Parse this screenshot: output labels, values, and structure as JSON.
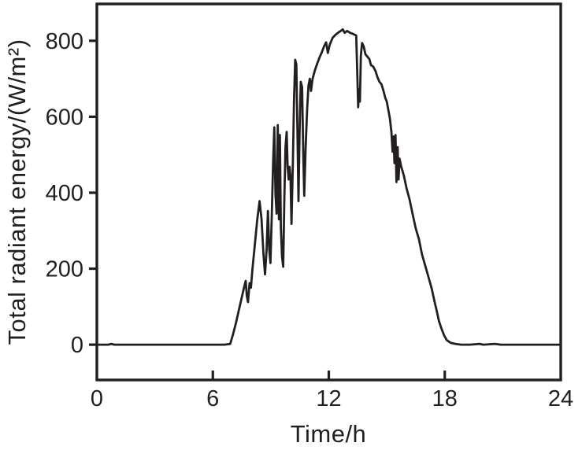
{
  "figure": {
    "background": "#ffffff",
    "axis_color": "#231f20",
    "text_color": "#231f20"
  },
  "chart_data": {
    "type": "line",
    "title": "",
    "xlabel": "Time/h",
    "ylabel": "Total radiant energy/(W/m²)",
    "xlim": [
      0,
      24
    ],
    "ylim": [
      -93,
      897
    ],
    "x_ticks": [
      0,
      6,
      12,
      18,
      24
    ],
    "y_ticks": [
      0,
      200,
      400,
      600,
      800
    ],
    "grid": false,
    "legend": "none",
    "series": [
      {
        "name": "total-radiant-energy",
        "color": "#231f20",
        "points": [
          [
            0,
            0
          ],
          [
            0.6,
            0
          ],
          [
            0.75,
            2
          ],
          [
            0.9,
            0
          ],
          [
            2,
            0
          ],
          [
            3.5,
            0
          ],
          [
            5,
            0
          ],
          [
            6,
            0
          ],
          [
            6.6,
            0
          ],
          [
            6.9,
            2
          ],
          [
            7.05,
            28
          ],
          [
            7.2,
            58
          ],
          [
            7.35,
            92
          ],
          [
            7.5,
            125
          ],
          [
            7.62,
            152
          ],
          [
            7.7,
            168
          ],
          [
            7.76,
            128
          ],
          [
            7.82,
            112
          ],
          [
            7.9,
            162
          ],
          [
            7.97,
            150
          ],
          [
            8.05,
            200
          ],
          [
            8.18,
            268
          ],
          [
            8.3,
            330
          ],
          [
            8.42,
            378
          ],
          [
            8.52,
            330
          ],
          [
            8.62,
            240
          ],
          [
            8.7,
            185
          ],
          [
            8.78,
            250
          ],
          [
            8.85,
            352
          ],
          [
            8.92,
            248
          ],
          [
            8.98,
            215
          ],
          [
            9.05,
            340
          ],
          [
            9.12,
            480
          ],
          [
            9.18,
            572
          ],
          [
            9.24,
            395
          ],
          [
            9.3,
            345
          ],
          [
            9.36,
            578
          ],
          [
            9.42,
            330
          ],
          [
            9.47,
            552
          ],
          [
            9.52,
            310
          ],
          [
            9.58,
            232
          ],
          [
            9.64,
            205
          ],
          [
            9.7,
            390
          ],
          [
            9.76,
            520
          ],
          [
            9.82,
            560
          ],
          [
            9.87,
            470
          ],
          [
            9.92,
            435
          ],
          [
            9.97,
            468
          ],
          [
            10.02,
            440
          ],
          [
            10.07,
            318
          ],
          [
            10.14,
            480
          ],
          [
            10.2,
            640
          ],
          [
            10.26,
            750
          ],
          [
            10.32,
            738
          ],
          [
            10.38,
            560
          ],
          [
            10.43,
            378
          ],
          [
            10.49,
            560
          ],
          [
            10.55,
            692
          ],
          [
            10.62,
            678
          ],
          [
            10.68,
            500
          ],
          [
            10.73,
            392
          ],
          [
            10.8,
            520
          ],
          [
            10.88,
            620
          ],
          [
            10.95,
            682
          ],
          [
            11.02,
            700
          ],
          [
            11.08,
            668
          ],
          [
            11.16,
            700
          ],
          [
            11.28,
            722
          ],
          [
            11.4,
            740
          ],
          [
            11.52,
            756
          ],
          [
            11.64,
            770
          ],
          [
            11.76,
            786
          ],
          [
            11.86,
            796
          ],
          [
            11.95,
            768
          ],
          [
            12.05,
            790
          ],
          [
            12.2,
            808
          ],
          [
            12.35,
            816
          ],
          [
            12.5,
            822
          ],
          [
            12.62,
            826
          ],
          [
            12.72,
            830
          ],
          [
            12.82,
            821
          ],
          [
            12.95,
            826
          ],
          [
            13.1,
            821
          ],
          [
            13.25,
            818
          ],
          [
            13.42,
            814
          ],
          [
            13.47,
            720
          ],
          [
            13.52,
            625
          ],
          [
            13.57,
            672
          ],
          [
            13.61,
            640
          ],
          [
            13.66,
            760
          ],
          [
            13.72,
            794
          ],
          [
            13.8,
            786
          ],
          [
            13.9,
            764
          ],
          [
            14.0,
            758
          ],
          [
            14.1,
            752
          ],
          [
            14.18,
            736
          ],
          [
            14.3,
            732
          ],
          [
            14.42,
            720
          ],
          [
            14.52,
            704
          ],
          [
            14.62,
            692
          ],
          [
            14.72,
            686
          ],
          [
            14.82,
            670
          ],
          [
            14.92,
            650
          ],
          [
            15.0,
            640
          ],
          [
            15.08,
            618
          ],
          [
            15.16,
            595
          ],
          [
            15.24,
            560
          ],
          [
            15.3,
            508
          ],
          [
            15.35,
            548
          ],
          [
            15.4,
            478
          ],
          [
            15.45,
            552
          ],
          [
            15.5,
            428
          ],
          [
            15.56,
            520
          ],
          [
            15.61,
            435
          ],
          [
            15.66,
            490
          ],
          [
            15.74,
            470
          ],
          [
            15.88,
            446
          ],
          [
            16.02,
            412
          ],
          [
            16.18,
            382
          ],
          [
            16.32,
            348
          ],
          [
            16.5,
            306
          ],
          [
            16.66,
            278
          ],
          [
            16.82,
            238
          ],
          [
            17.0,
            206
          ],
          [
            17.16,
            178
          ],
          [
            17.32,
            148
          ],
          [
            17.46,
            116
          ],
          [
            17.58,
            90
          ],
          [
            17.7,
            62
          ],
          [
            17.83,
            42
          ],
          [
            17.96,
            25
          ],
          [
            18.1,
            12
          ],
          [
            18.3,
            5
          ],
          [
            18.55,
            2
          ],
          [
            18.85,
            0
          ],
          [
            19.3,
            0
          ],
          [
            19.8,
            2
          ],
          [
            20.0,
            0
          ],
          [
            20.6,
            2
          ],
          [
            20.9,
            0
          ],
          [
            21.8,
            0
          ],
          [
            23,
            0
          ],
          [
            24,
            0
          ]
        ]
      }
    ]
  }
}
